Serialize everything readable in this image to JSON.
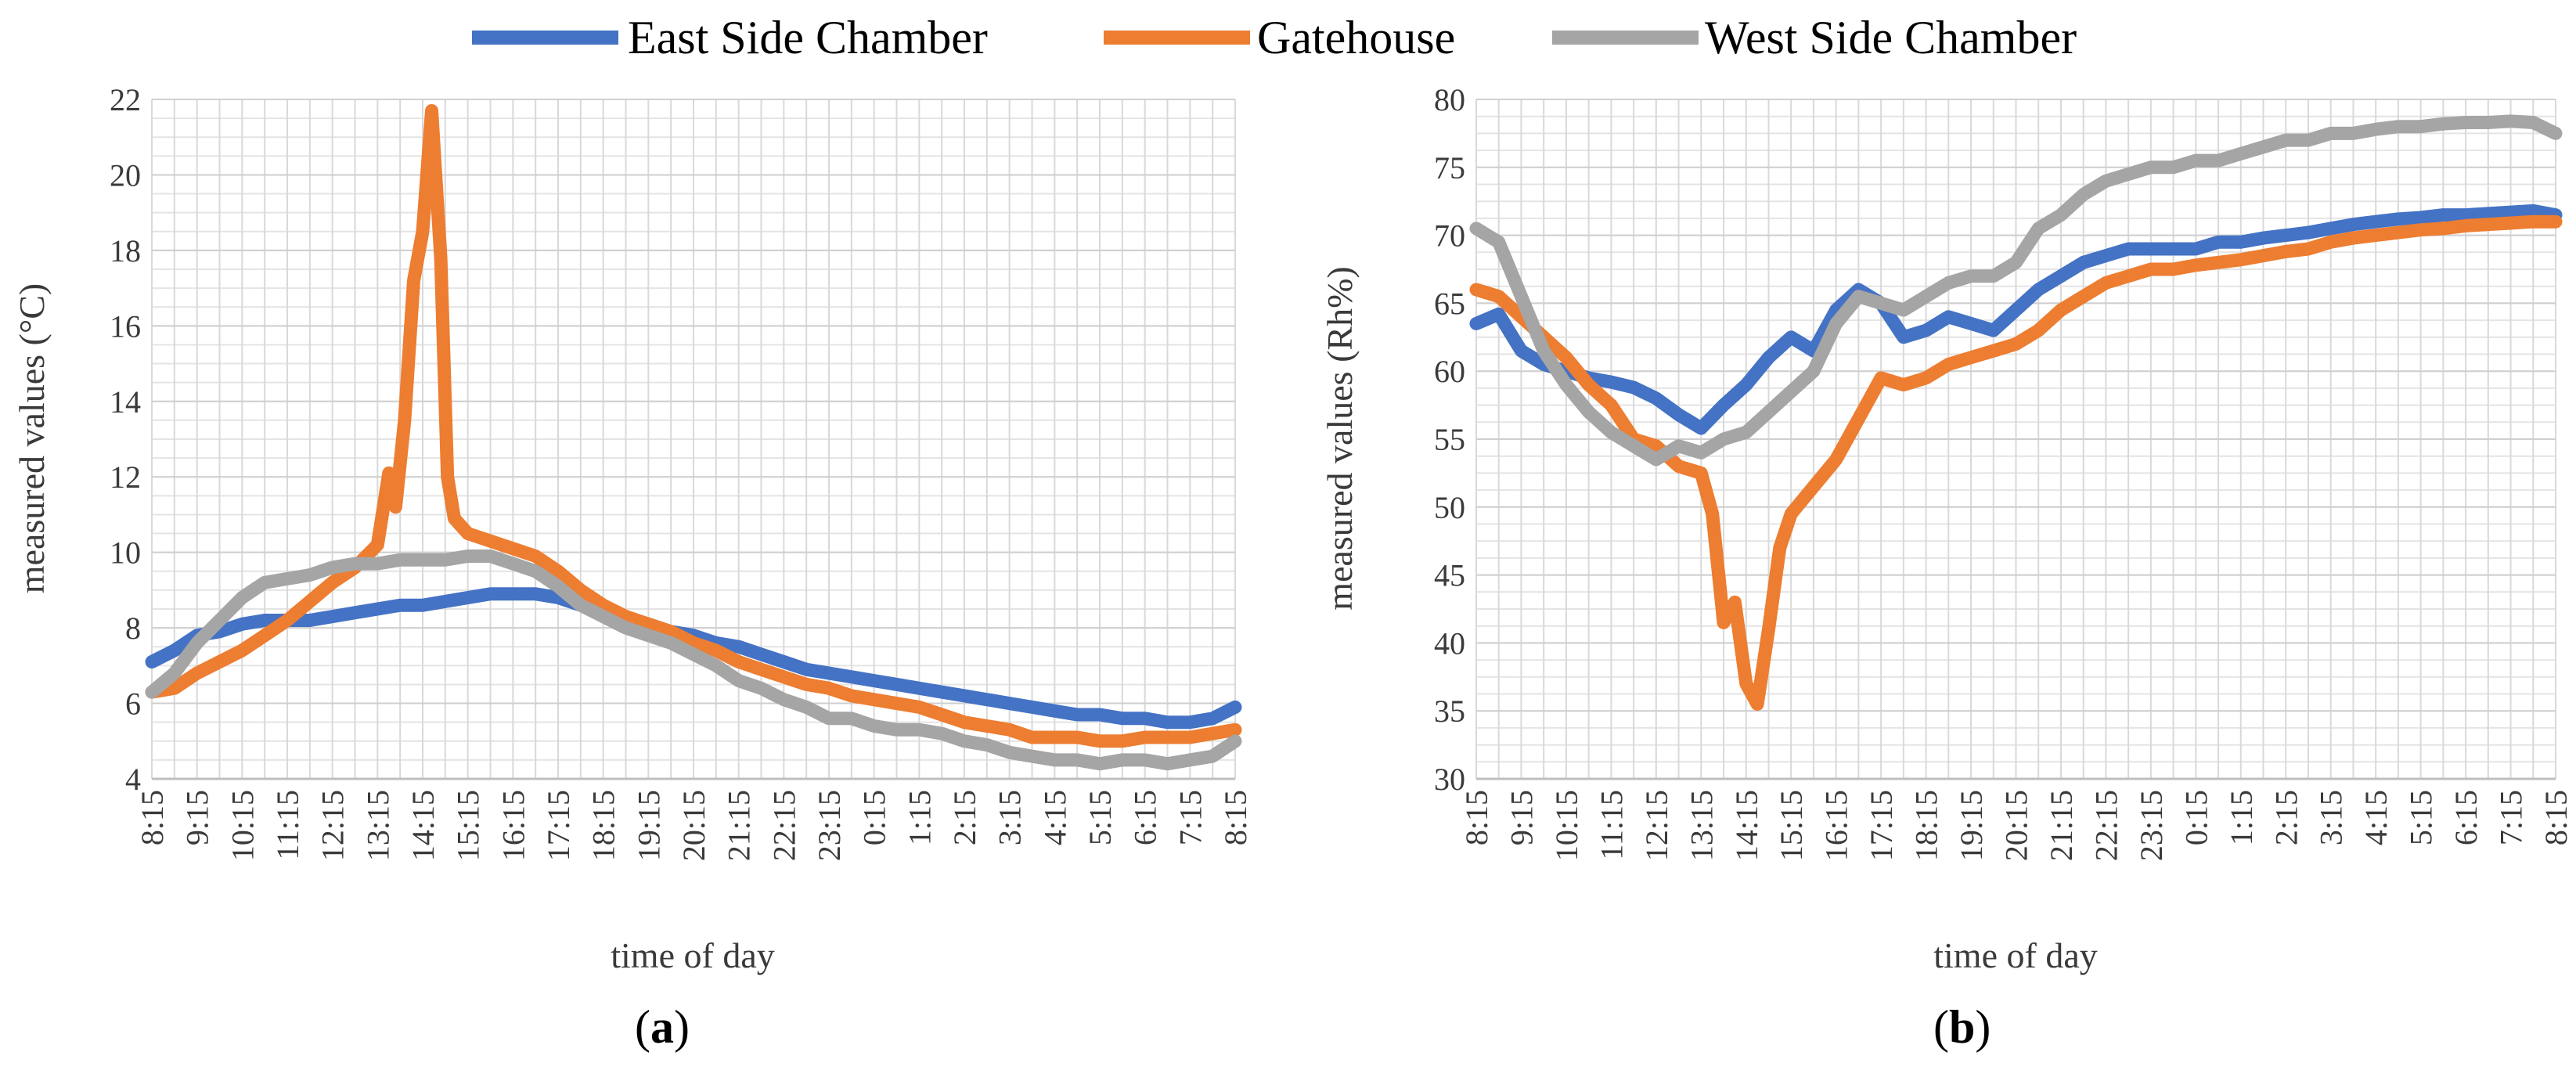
{
  "legend": [
    {
      "name": "East Side Chamber",
      "color": "#4472C4"
    },
    {
      "name": "Gatehouse",
      "color": "#ED7D31"
    },
    {
      "name": "West Side Chamber",
      "color": "#A5A5A5"
    }
  ],
  "chart_data": [
    {
      "type": "line",
      "panel": "a",
      "caption_open": "(",
      "caption_letter": "a",
      "caption_close": ")",
      "xlabel": "time of day",
      "ylabel": "measured values (°C)",
      "ylim": [
        4,
        22
      ],
      "ytick_step": 2,
      "yticks": [
        "4",
        "6",
        "8",
        "10",
        "12",
        "14",
        "16",
        "18",
        "20",
        "22"
      ],
      "categories": [
        "8:15",
        "9:15",
        "10:15",
        "11:15",
        "12:15",
        "13:15",
        "14:15",
        "15:15",
        "16:15",
        "17:15",
        "18:15",
        "19:15",
        "20:15",
        "21:15",
        "22:15",
        "23:15",
        "0:15",
        "1:15",
        "2:15",
        "3:15",
        "4:15",
        "5:15",
        "6:15",
        "7:15",
        "8:15"
      ],
      "series": [
        {
          "name": "East Side Chamber",
          "color": "#4472C4",
          "x": [
            0,
            0.5,
            1,
            1.5,
            2,
            2.5,
            3,
            3.5,
            4,
            4.5,
            5,
            5.5,
            6,
            6.5,
            7,
            7.5,
            8,
            8.5,
            9,
            9.5,
            10,
            10.5,
            11,
            11.5,
            12,
            12.5,
            13,
            13.5,
            14,
            14.5,
            15,
            15.5,
            16,
            16.5,
            17,
            17.5,
            18,
            18.5,
            19,
            19.5,
            20,
            20.5,
            21,
            21.5,
            22,
            22.5,
            23,
            23.5,
            24
          ],
          "y": [
            7.1,
            7.4,
            7.8,
            7.9,
            8.1,
            8.2,
            8.2,
            8.2,
            8.3,
            8.4,
            8.5,
            8.6,
            8.6,
            8.7,
            8.8,
            8.9,
            8.9,
            8.9,
            8.8,
            8.6,
            8.4,
            8.2,
            8.1,
            7.9,
            7.8,
            7.6,
            7.5,
            7.3,
            7.1,
            6.9,
            6.8,
            6.7,
            6.6,
            6.5,
            6.4,
            6.3,
            6.2,
            6.1,
            6.0,
            5.9,
            5.8,
            5.7,
            5.7,
            5.6,
            5.6,
            5.5,
            5.5,
            5.6,
            5.9
          ]
        },
        {
          "name": "Gatehouse",
          "color": "#ED7D31",
          "x": [
            0,
            0.5,
            1,
            1.5,
            2,
            2.5,
            3,
            3.5,
            4,
            4.5,
            5,
            5.25,
            5.4,
            5.6,
            5.8,
            6,
            6.2,
            6.4,
            6.55,
            6.7,
            7,
            7.5,
            8,
            8.5,
            9,
            9.5,
            10,
            10.5,
            11,
            11.5,
            12,
            12.5,
            13,
            13.5,
            14,
            14.5,
            15,
            15.5,
            16,
            16.5,
            17,
            17.5,
            18,
            18.5,
            19,
            19.5,
            20,
            20.5,
            21,
            21.5,
            22,
            22.5,
            23,
            23.5,
            24
          ],
          "y": [
            6.3,
            6.4,
            6.8,
            7.1,
            7.4,
            7.8,
            8.2,
            8.7,
            9.2,
            9.6,
            10.2,
            12.1,
            11.2,
            13.5,
            17.2,
            18.5,
            21.7,
            17.8,
            12.0,
            10.9,
            10.5,
            10.3,
            10.1,
            9.9,
            9.5,
            9.0,
            8.6,
            8.3,
            8.1,
            7.9,
            7.6,
            7.4,
            7.1,
            6.9,
            6.7,
            6.5,
            6.4,
            6.2,
            6.1,
            6.0,
            5.9,
            5.7,
            5.5,
            5.4,
            5.3,
            5.1,
            5.1,
            5.1,
            5.0,
            5.0,
            5.1,
            5.1,
            5.1,
            5.2,
            5.3
          ]
        },
        {
          "name": "West Side Chamber",
          "color": "#A5A5A5",
          "x": [
            0,
            0.5,
            1,
            1.5,
            2,
            2.5,
            3,
            3.5,
            4,
            4.5,
            5,
            5.5,
            6,
            6.5,
            7,
            7.5,
            8,
            8.5,
            9,
            9.5,
            10,
            10.5,
            11,
            11.5,
            12,
            12.5,
            13,
            13.5,
            14,
            14.5,
            15,
            15.5,
            16,
            16.5,
            17,
            17.5,
            18,
            18.5,
            19,
            19.5,
            20,
            20.5,
            21,
            21.5,
            22,
            22.5,
            23,
            23.5,
            24
          ],
          "y": [
            6.3,
            6.8,
            7.6,
            8.2,
            8.8,
            9.2,
            9.3,
            9.4,
            9.6,
            9.7,
            9.7,
            9.8,
            9.8,
            9.8,
            9.9,
            9.9,
            9.7,
            9.5,
            9.1,
            8.6,
            8.3,
            8.0,
            7.8,
            7.6,
            7.3,
            7.0,
            6.6,
            6.4,
            6.1,
            5.9,
            5.6,
            5.6,
            5.4,
            5.3,
            5.3,
            5.2,
            5.0,
            4.9,
            4.7,
            4.6,
            4.5,
            4.5,
            4.4,
            4.5,
            4.5,
            4.4,
            4.5,
            4.6,
            5.0
          ]
        }
      ]
    },
    {
      "type": "line",
      "panel": "b",
      "caption_open": "(",
      "caption_letter": "b",
      "caption_close": ")",
      "xlabel": "time of day",
      "ylabel": "measured values (Rh%)",
      "ylim": [
        30,
        80
      ],
      "ytick_step": 5,
      "yticks": [
        "30",
        "35",
        "40",
        "45",
        "50",
        "55",
        "60",
        "65",
        "70",
        "75",
        "80"
      ],
      "categories": [
        "8:15",
        "9:15",
        "10:15",
        "11:15",
        "12:15",
        "13:15",
        "14:15",
        "15:15",
        "16:15",
        "17:15",
        "18:15",
        "19:15",
        "20:15",
        "21:15",
        "22:15",
        "23:15",
        "0:15",
        "1:15",
        "2:15",
        "3:15",
        "4:15",
        "5:15",
        "6:15",
        "7:15",
        "8:15"
      ],
      "series": [
        {
          "name": "East Side Chamber",
          "color": "#4472C4",
          "x": [
            0,
            0.5,
            1,
            1.5,
            2,
            2.5,
            3,
            3.5,
            4,
            4.5,
            5,
            5.5,
            6,
            6.5,
            7,
            7.5,
            8,
            8.5,
            9,
            9.5,
            10,
            10.5,
            11,
            11.5,
            12,
            12.5,
            13,
            13.5,
            14,
            14.5,
            15,
            15.5,
            16,
            16.5,
            17,
            17.5,
            18,
            18.5,
            19,
            19.5,
            20,
            20.5,
            21,
            21.5,
            22,
            22.5,
            23,
            23.5,
            24
          ],
          "y": [
            63.5,
            64.2,
            61.5,
            60.5,
            60.0,
            59.5,
            59.2,
            58.8,
            58.0,
            56.8,
            55.8,
            57.5,
            59.0,
            61.0,
            62.5,
            61.5,
            64.5,
            66.0,
            65.0,
            62.5,
            63.0,
            64.0,
            63.5,
            63.0,
            64.5,
            66.0,
            67.0,
            68.0,
            68.5,
            69.0,
            69.0,
            69.0,
            69.0,
            69.5,
            69.5,
            69.8,
            70.0,
            70.2,
            70.5,
            70.8,
            71.0,
            71.2,
            71.3,
            71.5,
            71.5,
            71.6,
            71.7,
            71.8,
            71.5
          ]
        },
        {
          "name": "Gatehouse",
          "color": "#ED7D31",
          "x": [
            0,
            0.5,
            1,
            1.5,
            2,
            2.5,
            3,
            3.5,
            4,
            4.5,
            5,
            5.25,
            5.5,
            5.75,
            6,
            6.25,
            6.5,
            6.75,
            7,
            7.5,
            8,
            8.5,
            9,
            9.5,
            10,
            10.5,
            11,
            11.5,
            12,
            12.5,
            13,
            13.5,
            14,
            14.5,
            15,
            15.5,
            16,
            16.5,
            17,
            17.5,
            18,
            18.5,
            19,
            19.5,
            20,
            20.5,
            21,
            21.5,
            22,
            22.5,
            23,
            23.5,
            24
          ],
          "y": [
            66.0,
            65.5,
            64.0,
            62.5,
            61.0,
            59.0,
            57.5,
            55.0,
            54.5,
            53.0,
            52.5,
            49.5,
            41.5,
            43.0,
            37.0,
            35.5,
            41.0,
            47.0,
            49.5,
            51.5,
            53.5,
            56.5,
            59.5,
            59.0,
            59.5,
            60.5,
            61.0,
            61.5,
            62.0,
            63.0,
            64.5,
            65.5,
            66.5,
            67.0,
            67.5,
            67.5,
            67.8,
            68.0,
            68.2,
            68.5,
            68.8,
            69.0,
            69.5,
            69.8,
            70.0,
            70.2,
            70.4,
            70.5,
            70.7,
            70.8,
            70.9,
            71.0,
            71.0
          ]
        },
        {
          "name": "West Side Chamber",
          "color": "#A5A5A5",
          "x": [
            0,
            0.5,
            1,
            1.5,
            2,
            2.5,
            3,
            3.5,
            4,
            4.5,
            5,
            5.5,
            6,
            6.5,
            7,
            7.5,
            8,
            8.5,
            9,
            9.5,
            10,
            10.5,
            11,
            11.5,
            12,
            12.5,
            13,
            13.5,
            14,
            14.5,
            15,
            15.5,
            16,
            16.5,
            17,
            17.5,
            18,
            18.5,
            19,
            19.5,
            20,
            20.5,
            21,
            21.5,
            22,
            22.5,
            23,
            23.5,
            24
          ],
          "y": [
            70.5,
            69.5,
            65.5,
            61.5,
            59.0,
            57.0,
            55.5,
            54.5,
            53.5,
            54.5,
            54.0,
            55.0,
            55.5,
            57.0,
            58.5,
            60.0,
            63.5,
            65.5,
            65.0,
            64.5,
            65.5,
            66.5,
            67.0,
            67.0,
            68.0,
            70.5,
            71.5,
            73.0,
            74.0,
            74.5,
            75.0,
            75.0,
            75.5,
            75.5,
            76.0,
            76.5,
            77.0,
            77.0,
            77.5,
            77.5,
            77.8,
            78.0,
            78.0,
            78.2,
            78.3,
            78.3,
            78.4,
            78.3,
            77.5
          ]
        }
      ]
    }
  ]
}
